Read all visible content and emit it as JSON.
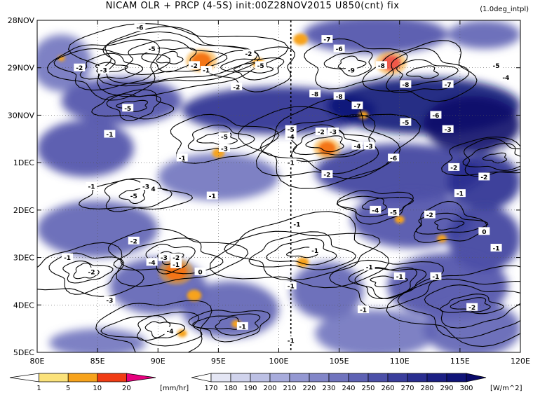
{
  "header": {
    "title": "NICAM  OLR + PRCP (4-5S) init:00Z28NOV2015  U850(cnt) fix",
    "subtitle": "(1.0deg_intpl)"
  },
  "chart_data": {
    "type": "heatmap",
    "x_axis": {
      "range": [
        80,
        120
      ],
      "ticks": [
        "80E",
        "85E",
        "90E",
        "95E",
        "100E",
        "105E",
        "110E",
        "115E",
        "120E"
      ],
      "tick_values": [
        80,
        85,
        90,
        95,
        100,
        105,
        110,
        115,
        120
      ]
    },
    "y_axis": {
      "range": [
        "28NOV",
        "5DEC"
      ],
      "ticks": [
        "28NOV",
        "29NOV",
        "30NOV",
        "1DEC",
        "2DEC",
        "3DEC",
        "4DEC",
        "5DEC"
      ],
      "inverted": true
    },
    "grid": true,
    "reference_line_lon": 101,
    "precip_colorbar": {
      "unit": "[mm/hr]",
      "levels": [
        "1",
        "5",
        "10",
        "20"
      ],
      "colors": [
        "#ffffff",
        "#fbe27a",
        "#f7a31c",
        "#f03c14",
        "#e6007e"
      ]
    },
    "olr_colorbar": {
      "unit": "[W/m^2]",
      "levels": [
        "170",
        "180",
        "190",
        "200",
        "210",
        "220",
        "230",
        "240",
        "250",
        "260",
        "270",
        "280",
        "290",
        "300"
      ],
      "colors": [
        "#fefefe",
        "#e4e6f4",
        "#d0d3ec",
        "#bcc0e4",
        "#a8acdc",
        "#9498d2",
        "#8286c8",
        "#7074be",
        "#5e62b4",
        "#4c50a8",
        "#3a3e9c",
        "#2a2e90",
        "#1c2084",
        "#101478",
        "#0a0a6a"
      ]
    },
    "olr_patches": [
      {
        "lon": 82,
        "day": 0.9,
        "v": 230,
        "rx": 2.5,
        "ry": 0.6
      },
      {
        "lon": 87,
        "day": 1.7,
        "v": 250,
        "rx": 5,
        "ry": 0.5
      },
      {
        "lon": 100,
        "day": 1.9,
        "v": 270,
        "rx": 8,
        "ry": 0.5
      },
      {
        "lon": 112,
        "day": 1.8,
        "v": 290,
        "rx": 8,
        "ry": 0.6
      },
      {
        "lon": 116,
        "day": 2.2,
        "v": 300,
        "rx": 4,
        "ry": 0.6
      },
      {
        "lon": 108,
        "day": 0.3,
        "v": 250,
        "rx": 6,
        "ry": 0.4
      },
      {
        "lon": 117,
        "day": 0.3,
        "v": 240,
        "rx": 3,
        "ry": 0.3
      },
      {
        "lon": 84,
        "day": 2.7,
        "v": 250,
        "rx": 4,
        "ry": 0.6
      },
      {
        "lon": 95,
        "day": 3.3,
        "v": 230,
        "rx": 5,
        "ry": 0.5
      },
      {
        "lon": 110,
        "day": 3.2,
        "v": 260,
        "rx": 7,
        "ry": 0.6
      },
      {
        "lon": 117,
        "day": 3.4,
        "v": 270,
        "rx": 3,
        "ry": 0.6
      },
      {
        "lon": 85,
        "day": 4.4,
        "v": 240,
        "rx": 5,
        "ry": 0.6
      },
      {
        "lon": 111,
        "day": 4.2,
        "v": 250,
        "rx": 5,
        "ry": 0.6
      },
      {
        "lon": 117,
        "day": 4.6,
        "v": 260,
        "rx": 3,
        "ry": 0.7
      },
      {
        "lon": 90,
        "day": 5.6,
        "v": 240,
        "rx": 4,
        "ry": 0.6
      },
      {
        "lon": 104,
        "day": 5.7,
        "v": 240,
        "rx": 3,
        "ry": 0.6
      },
      {
        "lon": 114,
        "day": 5.6,
        "v": 250,
        "rx": 5,
        "ry": 0.7
      },
      {
        "lon": 96,
        "day": 6.1,
        "v": 240,
        "rx": 4,
        "ry": 0.6
      },
      {
        "lon": 108,
        "day": 6.6,
        "v": 230,
        "rx": 5,
        "ry": 0.5
      },
      {
        "lon": 116,
        "day": 6.5,
        "v": 240,
        "rx": 4,
        "ry": 0.6
      },
      {
        "lon": 85,
        "day": 6.8,
        "v": 230,
        "rx": 4,
        "ry": 0.3
      }
    ],
    "precip_patches": [
      {
        "lon": 93.6,
        "day": 0.85,
        "v": 10,
        "r": 0.8
      },
      {
        "lon": 109.3,
        "day": 0.9,
        "v": 20,
        "r": 0.8
      },
      {
        "lon": 101.8,
        "day": 0.4,
        "v": 5,
        "r": 0.6
      },
      {
        "lon": 98.3,
        "day": 0.9,
        "v": 5,
        "r": 0.5
      },
      {
        "lon": 104,
        "day": 2.7,
        "v": 10,
        "r": 0.7
      },
      {
        "lon": 95,
        "day": 2.8,
        "v": 5,
        "r": 0.5
      },
      {
        "lon": 91.5,
        "day": 5.3,
        "v": 10,
        "r": 0.9
      },
      {
        "lon": 93,
        "day": 5.8,
        "v": 5,
        "r": 0.6
      },
      {
        "lon": 102,
        "day": 5.1,
        "v": 5,
        "r": 0.5
      },
      {
        "lon": 110,
        "day": 4.2,
        "v": 5,
        "r": 0.4
      },
      {
        "lon": 96.5,
        "day": 6.4,
        "v": 5,
        "r": 0.4
      },
      {
        "lon": 107,
        "day": 2.0,
        "v": 5,
        "r": 0.4
      },
      {
        "lon": 113.5,
        "day": 4.6,
        "v": 5,
        "r": 0.4
      },
      {
        "lon": 82,
        "day": 0.8,
        "v": 5,
        "r": 0.3
      },
      {
        "lon": 92,
        "day": 6.6,
        "v": 5,
        "r": 0.4
      }
    ],
    "contour_labels": [
      {
        "text": "-6",
        "lon": 88.5,
        "day": 0.15
      },
      {
        "text": "-5",
        "lon": 89.5,
        "day": 0.6
      },
      {
        "text": "-3",
        "lon": 85.5,
        "day": 1.05
      },
      {
        "text": "-2",
        "lon": 83.5,
        "day": 1.0
      },
      {
        "text": "-5",
        "lon": 87.5,
        "day": 1.85
      },
      {
        "text": "-1",
        "lon": 86,
        "day": 2.4
      },
      {
        "text": "-2",
        "lon": 93,
        "day": 0.95
      },
      {
        "text": "-1",
        "lon": 94,
        "day": 1.05
      },
      {
        "text": "-2",
        "lon": 96.5,
        "day": 1.4
      },
      {
        "text": "-2",
        "lon": 97.5,
        "day": 0.7
      },
      {
        "text": "-5",
        "lon": 98.5,
        "day": 0.95
      },
      {
        "text": "-7",
        "lon": 104,
        "day": 0.4
      },
      {
        "text": "-6",
        "lon": 105,
        "day": 0.6
      },
      {
        "text": "-9",
        "lon": 106,
        "day": 1.05
      },
      {
        "text": "-8",
        "lon": 108.5,
        "day": 0.95
      },
      {
        "text": "-8",
        "lon": 103,
        "day": 1.55
      },
      {
        "text": "-8",
        "lon": 105,
        "day": 1.6
      },
      {
        "text": "-7",
        "lon": 106.5,
        "day": 1.8
      },
      {
        "text": "-8",
        "lon": 110.5,
        "day": 1.35
      },
      {
        "text": "-7",
        "lon": 114,
        "day": 1.35
      },
      {
        "text": "-5",
        "lon": 118,
        "day": 0.95
      },
      {
        "text": "-4",
        "lon": 118.8,
        "day": 1.2
      },
      {
        "text": "-6",
        "lon": 113,
        "day": 2.0
      },
      {
        "text": "-5",
        "lon": 110.5,
        "day": 2.15
      },
      {
        "text": "-3",
        "lon": 114,
        "day": 2.3
      },
      {
        "text": "-5",
        "lon": 101,
        "day": 2.3
      },
      {
        "text": "-4",
        "lon": 101,
        "day": 2.45
      },
      {
        "text": "-2",
        "lon": 103.5,
        "day": 2.35
      },
      {
        "text": "-3",
        "lon": 104.5,
        "day": 2.35
      },
      {
        "text": "-4",
        "lon": 106.5,
        "day": 2.65
      },
      {
        "text": "-3",
        "lon": 107.5,
        "day": 2.65
      },
      {
        "text": "-6",
        "lon": 109.5,
        "day": 2.9
      },
      {
        "text": "-2",
        "lon": 104,
        "day": 3.25
      },
      {
        "text": "-1",
        "lon": 101,
        "day": 3.0
      },
      {
        "text": "-5",
        "lon": 95.5,
        "day": 2.45
      },
      {
        "text": "-3",
        "lon": 95.5,
        "day": 2.7
      },
      {
        "text": "-1",
        "lon": 92,
        "day": 2.9
      },
      {
        "text": "-2",
        "lon": 114.5,
        "day": 3.1
      },
      {
        "text": "-2",
        "lon": 117,
        "day": 3.3
      },
      {
        "text": "-1",
        "lon": 115,
        "day": 3.65
      },
      {
        "text": "-4",
        "lon": 89.5,
        "day": 3.55
      },
      {
        "text": "-3",
        "lon": 89,
        "day": 3.5
      },
      {
        "text": "-5",
        "lon": 88,
        "day": 3.7
      },
      {
        "text": "-1",
        "lon": 94.5,
        "day": 3.7
      },
      {
        "text": "-4",
        "lon": 108,
        "day": 4.0
      },
      {
        "text": "-5",
        "lon": 109.5,
        "day": 4.05
      },
      {
        "text": "-2",
        "lon": 112.5,
        "day": 4.1
      },
      {
        "text": "-1",
        "lon": 84.5,
        "day": 3.5
      },
      {
        "text": "-2",
        "lon": 88,
        "day": 4.65
      },
      {
        "text": "-1",
        "lon": 101.5,
        "day": 4.3
      },
      {
        "text": "0",
        "lon": 117,
        "day": 4.45
      },
      {
        "text": "-1",
        "lon": 118,
        "day": 4.8
      },
      {
        "text": "-1",
        "lon": 82.5,
        "day": 5.0
      },
      {
        "text": "-2",
        "lon": 84.5,
        "day": 5.3
      },
      {
        "text": "-1",
        "lon": 103,
        "day": 4.85
      },
      {
        "text": "-1",
        "lon": 107.5,
        "day": 5.2
      },
      {
        "text": "-3",
        "lon": 90.5,
        "day": 5.0
      },
      {
        "text": "-2",
        "lon": 91.5,
        "day": 5.0
      },
      {
        "text": "-1",
        "lon": 91.5,
        "day": 5.15
      },
      {
        "text": "-4",
        "lon": 89.5,
        "day": 5.1
      },
      {
        "text": "0",
        "lon": 93.5,
        "day": 5.3
      },
      {
        "text": "-1",
        "lon": 101,
        "day": 5.6
      },
      {
        "text": "-1",
        "lon": 110,
        "day": 5.4
      },
      {
        "text": "-1",
        "lon": 113,
        "day": 5.4
      },
      {
        "text": "-3",
        "lon": 86,
        "day": 5.9
      },
      {
        "text": "-1",
        "lon": 107,
        "day": 6.1
      },
      {
        "text": "-2",
        "lon": 116,
        "day": 6.05
      },
      {
        "text": "-4",
        "lon": 91,
        "day": 6.55
      },
      {
        "text": "-1",
        "lon": 97,
        "day": 6.45
      },
      {
        "text": "-1",
        "lon": 101,
        "day": 6.75
      }
    ]
  }
}
